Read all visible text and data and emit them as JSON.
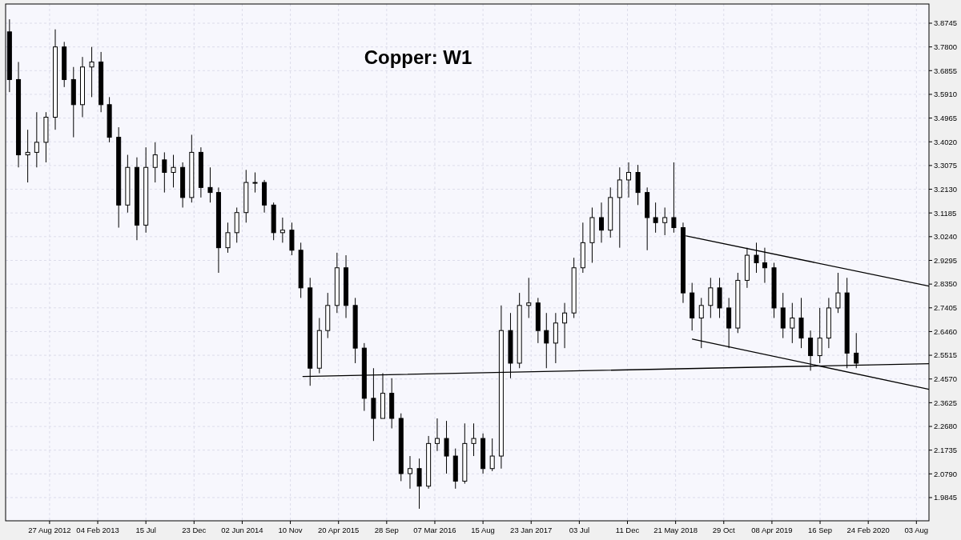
{
  "chart_data": {
    "type": "candlestick",
    "title": "Copper: W1",
    "xlim": [
      "2012-04-02",
      "2020-09-14"
    ],
    "ylim": [
      1.892,
      3.951
    ],
    "xticks": [
      {
        "value": "2012-08-27",
        "label": "27 Aug 2012"
      },
      {
        "value": "2013-02-04",
        "label": "04 Feb 2013"
      },
      {
        "value": "2013-07-15",
        "label": "15 Jul"
      },
      {
        "value": "2013-12-23",
        "label": "23 Dec"
      },
      {
        "value": "2014-06-02",
        "label": "02 Jun 2014"
      },
      {
        "value": "2014-11-10",
        "label": "10 Nov"
      },
      {
        "value": "2015-04-20",
        "label": "20 Apr 2015"
      },
      {
        "value": "2015-09-28",
        "label": "28 Sep"
      },
      {
        "value": "2016-03-07",
        "label": "07 Mar 2016"
      },
      {
        "value": "2016-08-15",
        "label": "15 Aug"
      },
      {
        "value": "2017-01-23",
        "label": "23 Jan 2017"
      },
      {
        "value": "2017-07-03",
        "label": "03 Jul"
      },
      {
        "value": "2017-12-11",
        "label": "11 Dec"
      },
      {
        "value": "2018-05-21",
        "label": "21 May 2018"
      },
      {
        "value": "2018-10-29",
        "label": "29 Oct"
      },
      {
        "value": "2019-04-08",
        "label": "08 Apr 2019"
      },
      {
        "value": "2019-09-16",
        "label": "16 Sep"
      },
      {
        "value": "2020-02-24",
        "label": "24 Feb 2020"
      },
      {
        "value": "2020-08-03",
        "label": "03 Aug"
      }
    ],
    "yticks": [
      {
        "value": 1.9845,
        "label": "1.9845"
      },
      {
        "value": 2.079,
        "label": "2.0790"
      },
      {
        "value": 2.1735,
        "label": "2.1735"
      },
      {
        "value": 2.268,
        "label": "2.2680"
      },
      {
        "value": 2.3625,
        "label": "2.3625"
      },
      {
        "value": 2.457,
        "label": "2.4570"
      },
      {
        "value": 2.5515,
        "label": "2.5515"
      },
      {
        "value": 2.646,
        "label": "2.6460"
      },
      {
        "value": 2.7405,
        "label": "2.7405"
      },
      {
        "value": 2.835,
        "label": "2.8350"
      },
      {
        "value": 2.9295,
        "label": "2.9295"
      },
      {
        "value": 3.024,
        "label": "3.0240"
      },
      {
        "value": 3.1185,
        "label": "3.1185"
      },
      {
        "value": 3.213,
        "label": "3.2130"
      },
      {
        "value": 3.3075,
        "label": "3.3075"
      },
      {
        "value": 3.402,
        "label": "3.4020"
      },
      {
        "value": 3.4965,
        "label": "3.4965"
      },
      {
        "value": 3.591,
        "label": "3.5910"
      },
      {
        "value": 3.6855,
        "label": "3.6855"
      },
      {
        "value": 3.78,
        "label": "3.7800"
      },
      {
        "value": 3.8745,
        "label": "3.8745"
      }
    ],
    "grid": true,
    "series": [
      {
        "color": "#000000",
        "x": [
          "2012-04-15",
          "2012-05-15",
          "2012-06-15",
          "2012-07-15",
          "2012-08-15",
          "2012-09-15",
          "2012-10-15",
          "2012-11-15",
          "2012-12-15",
          "2013-01-15",
          "2013-02-15",
          "2013-03-15",
          "2013-04-15",
          "2013-05-15",
          "2013-06-15",
          "2013-07-15",
          "2013-08-15",
          "2013-09-15",
          "2013-10-15",
          "2013-11-15",
          "2013-12-15",
          "2014-01-15",
          "2014-02-15",
          "2014-03-15",
          "2014-04-15",
          "2014-05-15",
          "2014-06-15",
          "2014-07-15",
          "2014-08-15",
          "2014-09-15",
          "2014-10-15",
          "2014-11-15",
          "2014-12-15",
          "2015-01-15",
          "2015-02-15",
          "2015-03-15",
          "2015-04-15",
          "2015-05-15",
          "2015-06-15",
          "2015-07-15",
          "2015-08-15",
          "2015-09-15",
          "2015-10-15",
          "2015-11-15",
          "2015-12-15",
          "2016-01-15",
          "2016-02-15",
          "2016-03-15",
          "2016-04-15",
          "2016-05-15",
          "2016-06-15",
          "2016-07-15",
          "2016-08-15",
          "2016-09-15",
          "2016-10-15",
          "2016-11-15",
          "2016-12-15",
          "2017-01-15",
          "2017-02-15",
          "2017-03-15",
          "2017-04-15",
          "2017-05-15",
          "2017-06-15",
          "2017-07-15",
          "2017-08-15",
          "2017-09-15",
          "2017-10-15",
          "2017-11-15",
          "2017-12-15",
          "2018-01-15",
          "2018-02-15",
          "2018-03-15",
          "2018-04-15",
          "2018-05-15",
          "2018-06-15",
          "2018-07-15",
          "2018-08-15",
          "2018-09-15",
          "2018-10-15",
          "2018-11-15",
          "2018-12-15",
          "2019-01-15",
          "2019-02-15",
          "2019-03-15",
          "2019-04-15",
          "2019-05-15",
          "2019-06-15",
          "2019-07-15",
          "2019-08-15",
          "2019-09-15",
          "2019-10-15",
          "2019-11-15",
          "2019-12-15",
          "2020-01-15"
        ],
        "ohlc": [
          [
            3.84,
            3.89,
            3.6,
            3.65
          ],
          [
            3.65,
            3.72,
            3.3,
            3.35
          ],
          [
            3.35,
            3.45,
            3.24,
            3.36
          ],
          [
            3.36,
            3.52,
            3.3,
            3.4
          ],
          [
            3.4,
            3.52,
            3.32,
            3.5
          ],
          [
            3.5,
            3.85,
            3.45,
            3.78
          ],
          [
            3.78,
            3.8,
            3.62,
            3.65
          ],
          [
            3.65,
            3.7,
            3.42,
            3.55
          ],
          [
            3.55,
            3.74,
            3.5,
            3.7
          ],
          [
            3.7,
            3.78,
            3.58,
            3.72
          ],
          [
            3.72,
            3.76,
            3.52,
            3.55
          ],
          [
            3.55,
            3.58,
            3.4,
            3.42
          ],
          [
            3.42,
            3.46,
            3.06,
            3.15
          ],
          [
            3.15,
            3.35,
            3.12,
            3.3
          ],
          [
            3.3,
            3.34,
            3.01,
            3.07
          ],
          [
            3.07,
            3.38,
            3.04,
            3.3
          ],
          [
            3.3,
            3.4,
            3.24,
            3.35
          ],
          [
            3.33,
            3.36,
            3.2,
            3.28
          ],
          [
            3.28,
            3.35,
            3.22,
            3.3
          ],
          [
            3.3,
            3.32,
            3.14,
            3.18
          ],
          [
            3.18,
            3.43,
            3.16,
            3.36
          ],
          [
            3.36,
            3.38,
            3.18,
            3.22
          ],
          [
            3.22,
            3.3,
            3.16,
            3.2
          ],
          [
            3.2,
            3.22,
            2.88,
            2.98
          ],
          [
            2.98,
            3.08,
            2.96,
            3.04
          ],
          [
            3.04,
            3.14,
            3.0,
            3.12
          ],
          [
            3.12,
            3.29,
            3.08,
            3.24
          ],
          [
            3.24,
            3.28,
            3.2,
            3.24
          ],
          [
            3.24,
            3.25,
            3.12,
            3.15
          ],
          [
            3.15,
            3.16,
            3.01,
            3.04
          ],
          [
            3.04,
            3.1,
            3.0,
            3.05
          ],
          [
            3.05,
            3.08,
            2.95,
            2.97
          ],
          [
            2.97,
            3.0,
            2.78,
            2.82
          ],
          [
            2.82,
            2.86,
            2.43,
            2.5
          ],
          [
            2.5,
            2.7,
            2.48,
            2.65
          ],
          [
            2.65,
            2.8,
            2.62,
            2.75
          ],
          [
            2.75,
            2.96,
            2.72,
            2.9
          ],
          [
            2.9,
            2.95,
            2.7,
            2.75
          ],
          [
            2.75,
            2.78,
            2.52,
            2.58
          ],
          [
            2.58,
            2.6,
            2.33,
            2.38
          ],
          [
            2.38,
            2.5,
            2.21,
            2.3
          ],
          [
            2.3,
            2.48,
            2.3,
            2.4
          ],
          [
            2.4,
            2.46,
            2.26,
            2.3
          ],
          [
            2.3,
            2.32,
            2.05,
            2.08
          ],
          [
            2.08,
            2.15,
            2.02,
            2.1
          ],
          [
            2.1,
            2.14,
            1.94,
            2.03
          ],
          [
            2.03,
            2.23,
            2.02,
            2.2
          ],
          [
            2.2,
            2.3,
            2.17,
            2.22
          ],
          [
            2.22,
            2.29,
            2.08,
            2.15
          ],
          [
            2.15,
            2.18,
            2.02,
            2.05
          ],
          [
            2.05,
            2.28,
            2.04,
            2.2
          ],
          [
            2.2,
            2.28,
            2.15,
            2.22
          ],
          [
            2.22,
            2.24,
            2.08,
            2.1
          ],
          [
            2.1,
            2.22,
            2.09,
            2.15
          ],
          [
            2.15,
            2.75,
            2.1,
            2.65
          ],
          [
            2.65,
            2.72,
            2.46,
            2.52
          ],
          [
            2.52,
            2.8,
            2.5,
            2.75
          ],
          [
            2.75,
            2.86,
            2.7,
            2.76
          ],
          [
            2.76,
            2.78,
            2.6,
            2.65
          ],
          [
            2.65,
            2.72,
            2.5,
            2.6
          ],
          [
            2.6,
            2.72,
            2.52,
            2.68
          ],
          [
            2.68,
            2.76,
            2.58,
            2.72
          ],
          [
            2.72,
            2.94,
            2.7,
            2.9
          ],
          [
            2.9,
            3.08,
            2.88,
            3.0
          ],
          [
            3.0,
            3.14,
            2.92,
            3.1
          ],
          [
            3.1,
            3.16,
            3.0,
            3.05
          ],
          [
            3.05,
            3.22,
            3.02,
            3.18
          ],
          [
            3.18,
            3.3,
            2.98,
            3.25
          ],
          [
            3.25,
            3.32,
            3.18,
            3.28
          ],
          [
            3.28,
            3.31,
            3.15,
            3.2
          ],
          [
            3.2,
            3.22,
            2.97,
            3.1
          ],
          [
            3.1,
            3.16,
            3.04,
            3.08
          ],
          [
            3.08,
            3.14,
            3.03,
            3.1
          ],
          [
            3.1,
            3.32,
            3.04,
            3.06
          ],
          [
            3.06,
            3.08,
            2.76,
            2.8
          ],
          [
            2.8,
            2.84,
            2.65,
            2.7
          ],
          [
            2.7,
            2.78,
            2.58,
            2.75
          ],
          [
            2.75,
            2.86,
            2.7,
            2.82
          ],
          [
            2.82,
            2.86,
            2.7,
            2.74
          ],
          [
            2.74,
            2.78,
            2.58,
            2.66
          ],
          [
            2.66,
            2.88,
            2.64,
            2.85
          ],
          [
            2.85,
            2.98,
            2.82,
            2.95
          ],
          [
            2.95,
            3.0,
            2.88,
            2.92
          ],
          [
            2.92,
            2.98,
            2.84,
            2.9
          ],
          [
            2.9,
            2.92,
            2.7,
            2.74
          ],
          [
            2.74,
            2.8,
            2.62,
            2.66
          ],
          [
            2.66,
            2.76,
            2.6,
            2.7
          ],
          [
            2.7,
            2.78,
            2.58,
            2.62
          ],
          [
            2.62,
            2.65,
            2.49,
            2.55
          ],
          [
            2.55,
            2.74,
            2.52,
            2.62
          ],
          [
            2.62,
            2.78,
            2.58,
            2.74
          ],
          [
            2.74,
            2.88,
            2.72,
            2.8
          ],
          [
            2.8,
            2.86,
            2.5,
            2.56
          ],
          [
            2.56,
            2.64,
            2.5,
            2.52
          ]
        ]
      },
      {
        "type": "line",
        "color": "#000000",
        "x": [
          "2014-12-22",
          "2020-09-14"
        ],
        "values": [
          2.467,
          2.518
        ]
      },
      {
        "type": "line",
        "color": "#000000",
        "x": [
          "2018-06-25",
          "2020-09-14"
        ],
        "values": [
          3.027,
          2.827
        ]
      },
      {
        "type": "line",
        "color": "#000000",
        "x": [
          "2018-07-16",
          "2020-09-14"
        ],
        "values": [
          2.616,
          2.416
        ]
      }
    ]
  }
}
